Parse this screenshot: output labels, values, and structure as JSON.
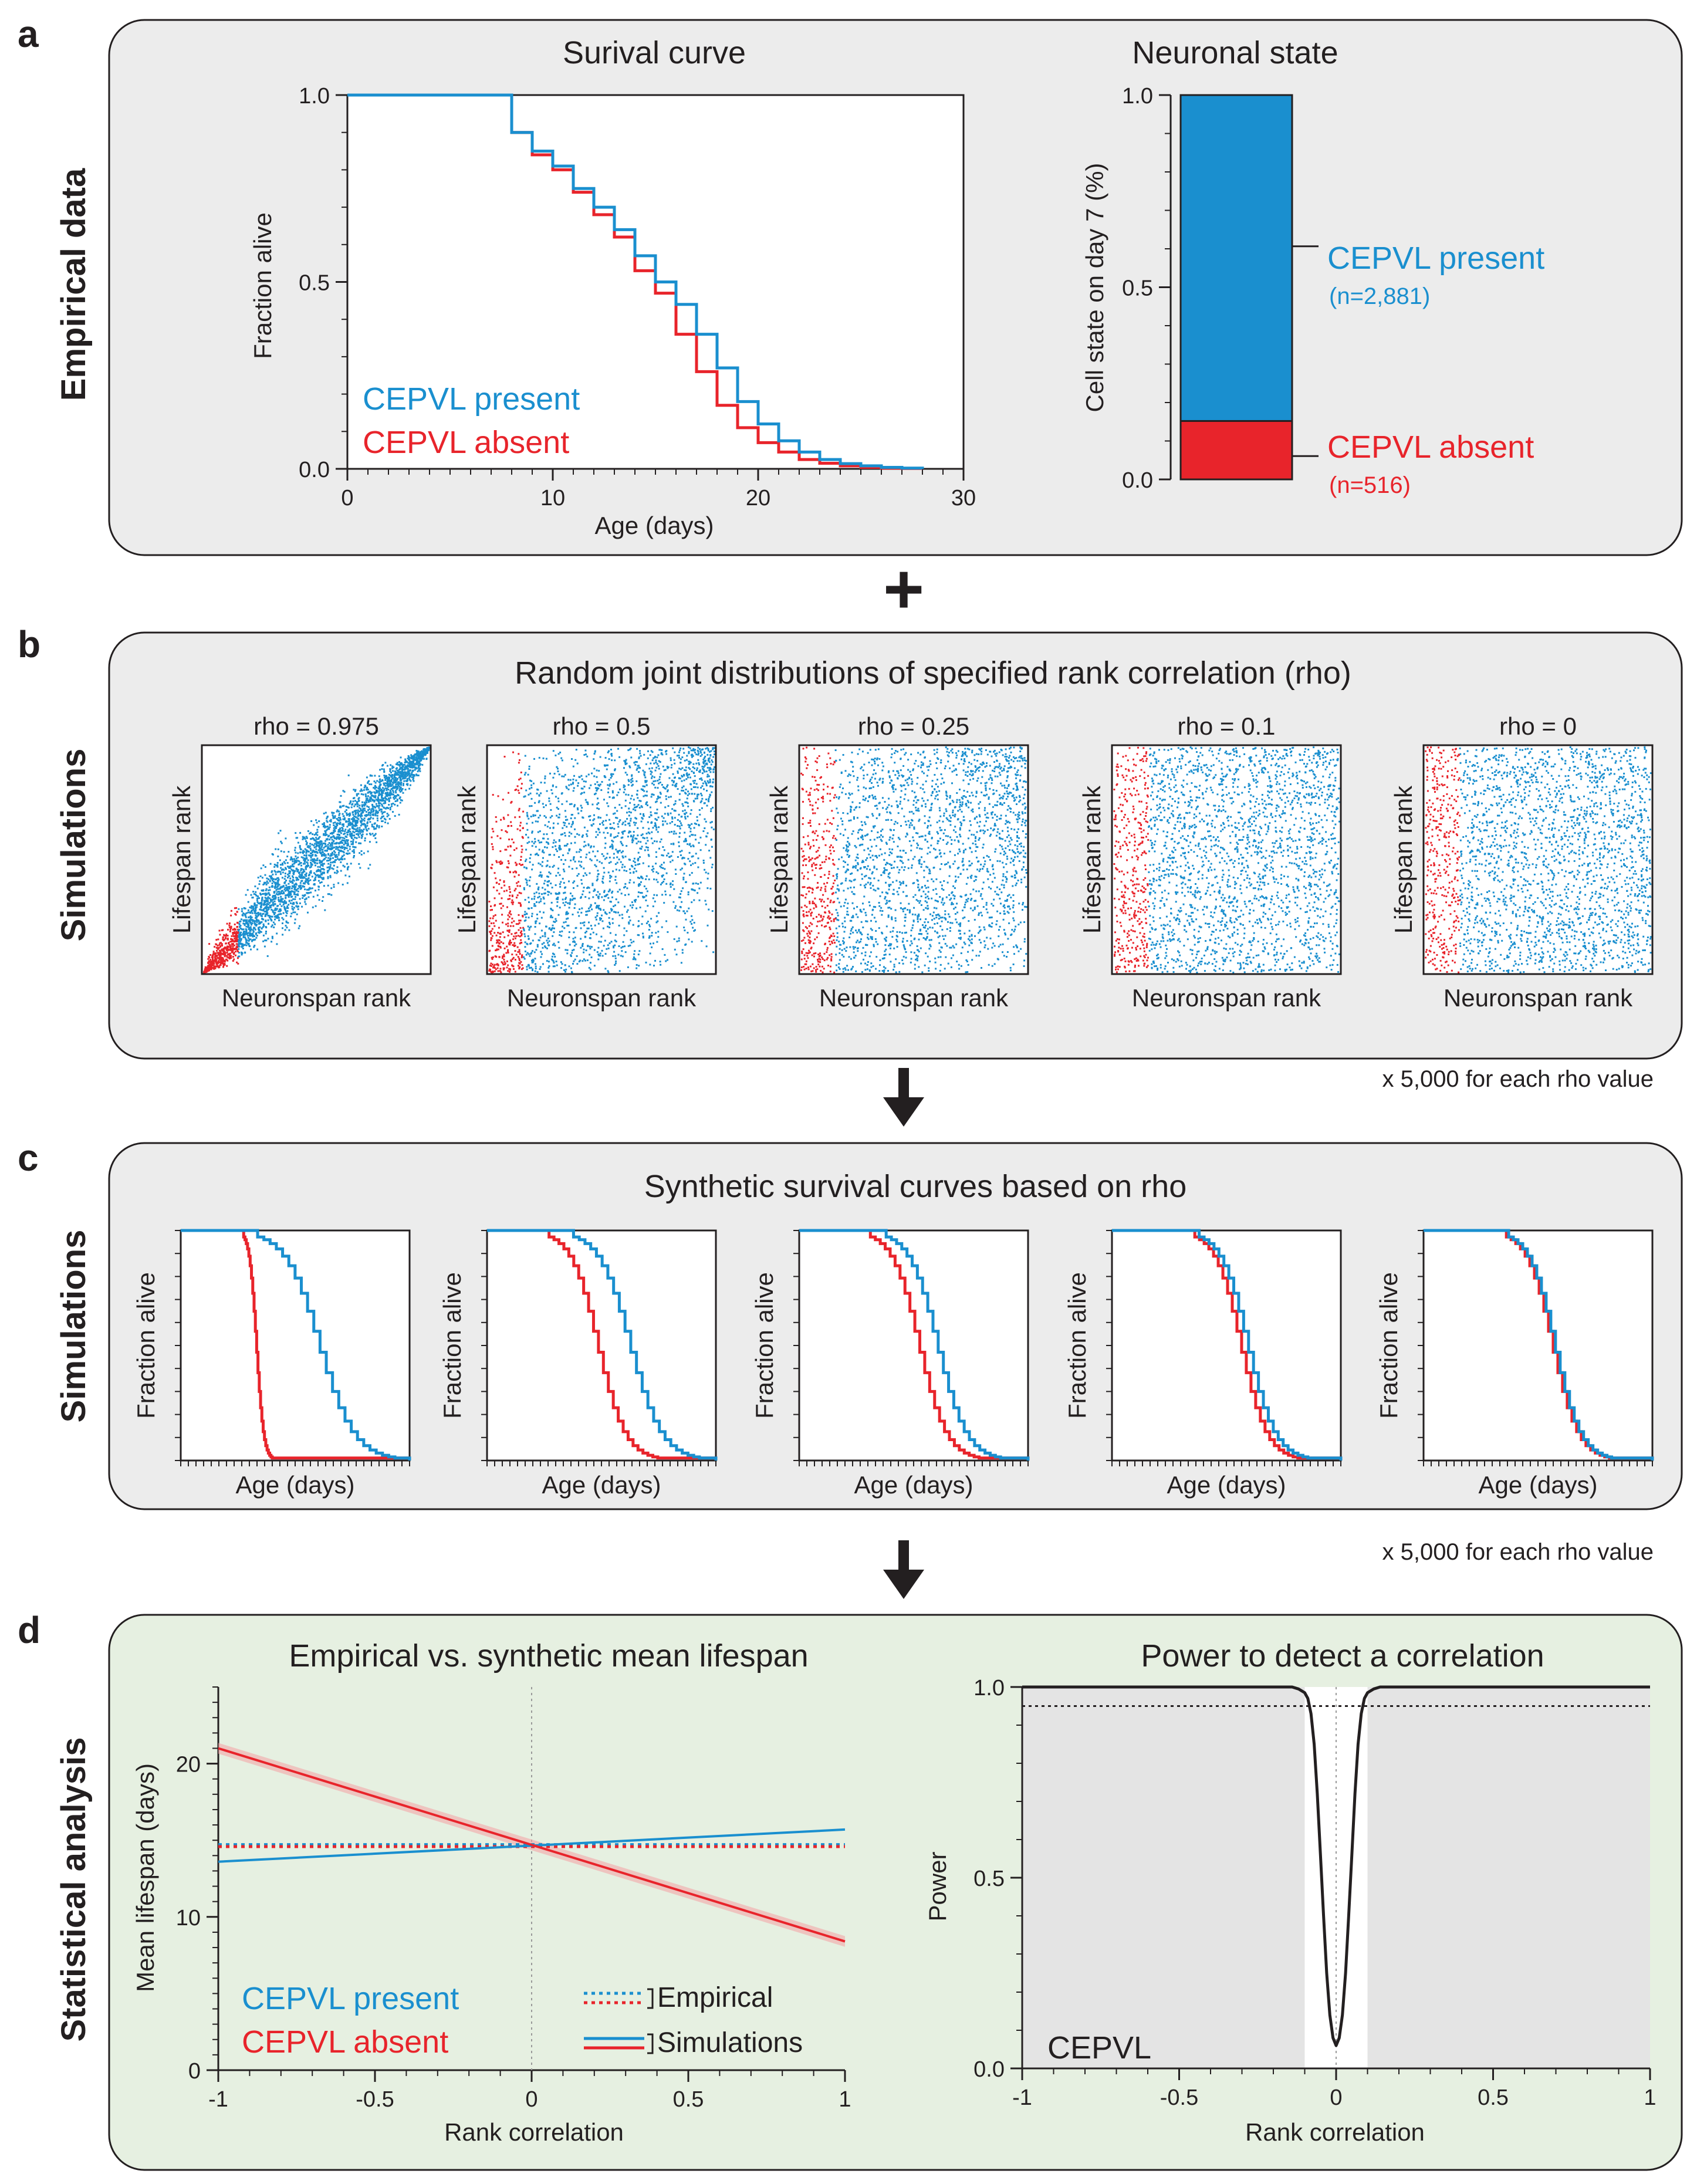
{
  "colors": {
    "present": "#1a8fcf",
    "absent": "#e8242b",
    "panel": "#ececec",
    "panel_green": "#e6f0e1",
    "axis": "#231f20"
  },
  "panels": [
    {
      "letter": "a",
      "side_label": "Empirical data"
    },
    {
      "letter": "b",
      "side_label": "Simulations",
      "title": "Random joint distributions of specified rank correlation (rho)",
      "note": "x 5,000 for each rho value"
    },
    {
      "letter": "c",
      "side_label": "Simulations",
      "title": "Synthetic survival curves based on rho",
      "note": "x 5,000 for each rho value"
    },
    {
      "letter": "d",
      "side_label": "Statistical analysis"
    }
  ],
  "plus_sign": "+",
  "chart_data": [
    {
      "id": "a-survival",
      "type": "line",
      "title": "Surival curve",
      "xlabel": "Age (days)",
      "ylabel": "Fraction alive",
      "xlim": [
        0,
        30
      ],
      "ylim": [
        0,
        1
      ],
      "xticks": [
        "0",
        "10",
        "20",
        "30"
      ],
      "yticks": [
        "0.0",
        "0.5",
        "1.0"
      ],
      "legend": [
        "CEPVL present",
        "CEPVL absent"
      ],
      "series": [
        {
          "name": "CEPVL present",
          "x": [
            0,
            8,
            9,
            10,
            11,
            12,
            13,
            14,
            15,
            16,
            17,
            18,
            19,
            20,
            21,
            22,
            23,
            24,
            25,
            26,
            27,
            28
          ],
          "y": [
            1.0,
            0.9,
            0.85,
            0.81,
            0.75,
            0.7,
            0.64,
            0.57,
            0.5,
            0.44,
            0.36,
            0.27,
            0.18,
            0.12,
            0.075,
            0.045,
            0.025,
            0.014,
            0.008,
            0.004,
            0.002,
            0
          ]
        },
        {
          "name": "CEPVL absent",
          "x": [
            0,
            8,
            9,
            10,
            11,
            12,
            13,
            14,
            15,
            16,
            17,
            18,
            19,
            20,
            21,
            22,
            23,
            24,
            25,
            26,
            27,
            28
          ],
          "y": [
            1.0,
            0.9,
            0.84,
            0.8,
            0.74,
            0.68,
            0.62,
            0.53,
            0.47,
            0.36,
            0.26,
            0.17,
            0.11,
            0.07,
            0.045,
            0.025,
            0.015,
            0.008,
            0.004,
            0.002,
            0.001,
            0
          ]
        }
      ]
    },
    {
      "id": "a-state",
      "type": "bar",
      "title": "Neuronal state",
      "ylabel": "Cell state on day 7 (%)",
      "ylim": [
        0,
        1
      ],
      "yticks": [
        "0.0",
        "0.5",
        "1.0"
      ],
      "segments": [
        {
          "name": "CEPVL absent",
          "value": 0.152,
          "n_label": "(n=516)"
        },
        {
          "name": "CEPVL present",
          "value": 0.848,
          "n_label": "(n=2,881)"
        }
      ]
    },
    {
      "id": "b-scatter",
      "type": "scatter",
      "xlabel": "Neuronspan rank",
      "ylabel": "Lifespan rank",
      "absent_fraction": 0.152,
      "panels": [
        {
          "label": "rho = 0.975",
          "rho": 0.975
        },
        {
          "label": "rho = 0.5",
          "rho": 0.5
        },
        {
          "label": "rho = 0.25",
          "rho": 0.25
        },
        {
          "label": "rho = 0.1",
          "rho": 0.1
        },
        {
          "label": "rho = 0",
          "rho": 0
        }
      ]
    },
    {
      "id": "c-survival",
      "type": "line",
      "xlabel": "Age (days)",
      "ylabel": "Fraction alive",
      "panels": [
        {
          "rho": 0.975,
          "absent_drop_at": 0.27,
          "present_mean_shift": 0.12,
          "present_spread": 0.42
        },
        {
          "rho": 0.5,
          "absent_drop_at": 0.27,
          "absent_spread": 0.4,
          "present_spread": 0.44
        },
        {
          "rho": 0.25,
          "absent_spread": 0.38,
          "present_spread": 0.36
        },
        {
          "rho": 0.1,
          "absent_spread": 0.33,
          "present_spread": 0.34
        },
        {
          "rho": 0,
          "absent_spread": 0.31,
          "present_spread": 0.32
        }
      ]
    },
    {
      "id": "d-lifespan",
      "type": "line",
      "title": "Empirical vs. synthetic mean lifespan",
      "xlabel": "Rank correlation",
      "ylabel": "Mean lifespan (days)",
      "xlim": [
        -1,
        1
      ],
      "ylim": [
        0,
        25
      ],
      "xticks": [
        "-1",
        "-0.5",
        "0",
        "0.5",
        "1"
      ],
      "yticks": [
        "0",
        "10",
        "20"
      ],
      "legend": {
        "present": "CEPVL present",
        "absent": "CEPVL absent",
        "empirical": "Empirical",
        "simulations": "Simulations"
      },
      "series": [
        {
          "name": "CEPVL present simulations",
          "x": [
            -1,
            1
          ],
          "y": [
            13.6,
            15.7
          ]
        },
        {
          "name": "CEPVL absent simulations",
          "x": [
            -1,
            1
          ],
          "y": [
            21.0,
            8.4
          ]
        },
        {
          "name": "CEPVL present empirical",
          "x": [
            -1,
            1
          ],
          "y": [
            14.6,
            14.6
          ]
        },
        {
          "name": "CEPVL absent empirical",
          "x": [
            -1,
            1
          ],
          "y": [
            14.7,
            14.7
          ]
        }
      ]
    },
    {
      "id": "d-power",
      "type": "line",
      "title": "Power to detect a correlation",
      "xlabel": "Rank correlation",
      "ylabel": "Power",
      "xlim": [
        -1,
        1
      ],
      "ylim": [
        0,
        1
      ],
      "xticks": [
        "-1",
        "-0.5",
        "0",
        "0.5",
        "1"
      ],
      "yticks": [
        "0.0",
        "0.5",
        "1.0"
      ],
      "threshold": 0.95,
      "shaded_outside": [
        -0.1,
        0.1
      ],
      "annotation": "CEPVL",
      "series": [
        {
          "name": "Power",
          "x": [
            -1,
            -0.14,
            -0.12,
            -0.1,
            -0.09,
            -0.08,
            -0.07,
            -0.06,
            -0.05,
            -0.04,
            -0.03,
            -0.02,
            -0.01,
            0,
            0.01,
            0.02,
            0.03,
            0.04,
            0.05,
            0.06,
            0.07,
            0.08,
            0.09,
            0.1,
            0.12,
            0.14,
            1
          ],
          "y": [
            1,
            1,
            0.995,
            0.985,
            0.97,
            0.93,
            0.85,
            0.72,
            0.56,
            0.4,
            0.25,
            0.14,
            0.08,
            0.06,
            0.08,
            0.14,
            0.25,
            0.4,
            0.56,
            0.72,
            0.85,
            0.93,
            0.97,
            0.985,
            0.995,
            1,
            1
          ]
        }
      ]
    }
  ]
}
